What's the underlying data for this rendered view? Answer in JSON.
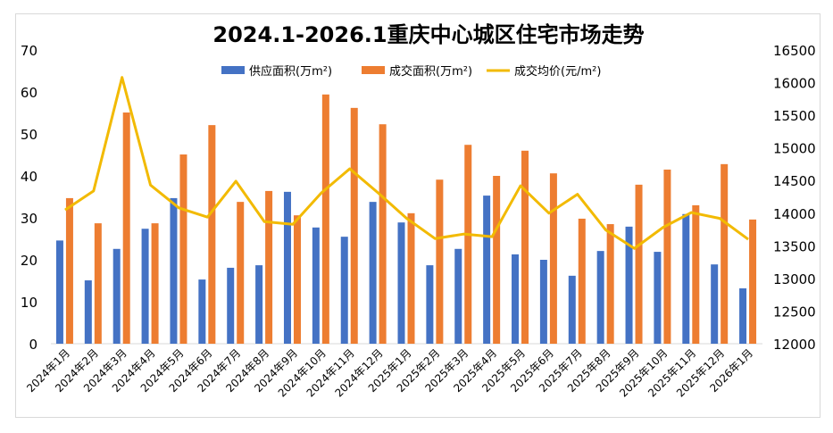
{
  "chart_data": {
    "type": "bar+line",
    "title": "2024.1-2026.1重庆中心城区住宅市场走势",
    "categories": [
      "2024年1月",
      "2024年2月",
      "2024年3月",
      "2024年4月",
      "2024年5月",
      "2024年6月",
      "2024年7月",
      "2024年8月",
      "2024年9月",
      "2024年10月",
      "2024年11月",
      "2024年12月",
      "2025年1月",
      "2025年2月",
      "2025年3月",
      "2025年4月",
      "2025年5月",
      "2025年6月",
      "2025年7月",
      "2025年8月",
      "2025年9月",
      "2025年10月",
      "2025年11月",
      "2025年12月",
      "2026年1月"
    ],
    "series": [
      {
        "name": "供应面积(万m²)",
        "type": "bar",
        "axis": "left",
        "color": "#4472C4",
        "values": [
          24.6,
          15.1,
          22.6,
          27.4,
          34.7,
          15.3,
          18.1,
          18.7,
          36.2,
          27.7,
          25.5,
          33.8,
          28.9,
          18.7,
          22.6,
          35.3,
          21.3,
          20.0,
          16.2,
          22.1,
          27.9,
          21.9,
          30.9,
          18.9,
          13.2
        ]
      },
      {
        "name": "成交面积(万m²)",
        "type": "bar",
        "axis": "left",
        "color": "#ED7D31",
        "values": [
          34.7,
          28.7,
          55.1,
          28.7,
          45.1,
          52.1,
          33.8,
          36.4,
          30.6,
          59.4,
          56.2,
          52.3,
          31.1,
          39.1,
          47.4,
          40.0,
          46.0,
          40.6,
          29.8,
          28.5,
          37.9,
          41.5,
          33.0,
          42.8,
          29.6
        ]
      },
      {
        "name": "成交均价(元/m²)",
        "type": "line",
        "axis": "right",
        "color": "#F2BA02",
        "values": [
          14050,
          14340,
          16080,
          14430,
          14080,
          13940,
          14490,
          13870,
          13830,
          14310,
          14680,
          14310,
          13920,
          13610,
          13680,
          13640,
          14420,
          14000,
          14290,
          13740,
          13460,
          13780,
          14010,
          13920,
          13600
        ]
      }
    ],
    "y_left": {
      "min": 0,
      "max": 70,
      "ticks": [
        "0",
        "10",
        "20",
        "30",
        "40",
        "50",
        "60",
        "70"
      ]
    },
    "y_right": {
      "min": 12000,
      "max": 16500,
      "ticks": [
        "12000",
        "12500",
        "13000",
        "13500",
        "14000",
        "14500",
        "15000",
        "15500",
        "16000",
        "16500"
      ]
    },
    "grid": false,
    "legend": "top"
  }
}
